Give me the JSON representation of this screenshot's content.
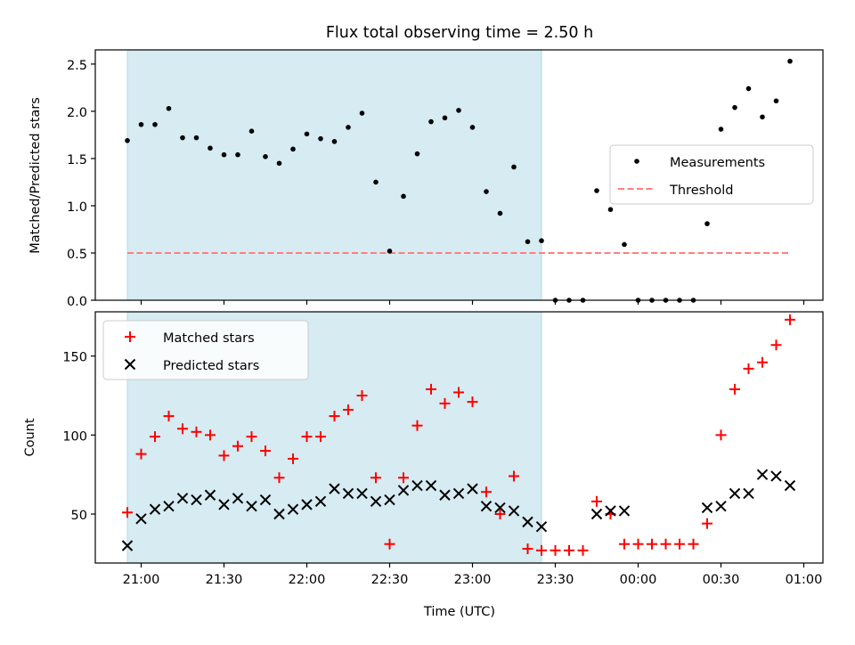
{
  "figure": {
    "title": "Flux total observing time = 2.50 h"
  },
  "chart_data": [
    {
      "type": "scatter",
      "panel": "top",
      "ylabel": "Matched/Predicted stars",
      "ylim": [
        0,
        2.65
      ],
      "yticks": [
        0.0,
        0.5,
        1.0,
        1.5,
        2.0,
        2.5
      ],
      "ytick_labels": [
        "0.0",
        "0.5",
        "1.0",
        "1.5",
        "2.0",
        "2.5"
      ],
      "grid": false,
      "legend": {
        "placement": "center-right",
        "entries": [
          {
            "label": "Measurements",
            "marker": "dot",
            "color": "#000000"
          },
          {
            "label": "Threshold",
            "marker": "dashed-line",
            "color": "#ff7f7f"
          }
        ]
      },
      "shaded_interval": {
        "start": "20:55",
        "end": "23:25",
        "color": "#add8e6"
      },
      "threshold": {
        "value": 0.5,
        "x_start": "20:55",
        "x_end": "00:55",
        "color": "#ff7f7f"
      },
      "series": [
        {
          "name": "Measurements",
          "color": "#000000",
          "x": [
            "20:55",
            "21:00",
            "21:05",
            "21:10",
            "21:15",
            "21:20",
            "21:25",
            "21:30",
            "21:35",
            "21:40",
            "21:45",
            "21:50",
            "21:55",
            "22:00",
            "22:05",
            "22:10",
            "22:15",
            "22:20",
            "22:25",
            "22:30",
            "22:35",
            "22:40",
            "22:45",
            "22:50",
            "22:55",
            "23:00",
            "23:05",
            "23:10",
            "23:15",
            "23:20",
            "23:25",
            "23:30",
            "23:35",
            "23:40",
            "23:45",
            "23:50",
            "23:55",
            "00:00",
            "00:05",
            "00:10",
            "00:15",
            "00:20",
            "00:25",
            "00:30",
            "00:35",
            "00:40",
            "00:45",
            "00:50",
            "00:55"
          ],
          "y": [
            1.69,
            1.86,
            1.86,
            2.03,
            1.72,
            1.72,
            1.61,
            1.54,
            1.54,
            1.79,
            1.52,
            1.45,
            1.6,
            1.76,
            1.71,
            1.68,
            1.83,
            1.98,
            1.25,
            0.52,
            1.1,
            1.55,
            1.89,
            1.93,
            2.01,
            1.83,
            1.15,
            0.92,
            1.41,
            0.62,
            0.63,
            0.0,
            0.0,
            0.0,
            1.16,
            0.96,
            0.59,
            0.0,
            0.0,
            0.0,
            0.0,
            0.0,
            0.81,
            1.81,
            2.04,
            2.24,
            1.94,
            2.11,
            2.53
          ]
        }
      ]
    },
    {
      "type": "scatter",
      "panel": "bottom",
      "xlabel": "Time (UTC)",
      "ylabel": "Count",
      "ylim": [
        19,
        178
      ],
      "yticks": [
        50,
        100,
        150
      ],
      "ytick_labels": [
        "50",
        "100",
        "150"
      ],
      "xticks": [
        "21:00",
        "21:30",
        "22:00",
        "22:30",
        "23:00",
        "23:30",
        "00:00",
        "00:30",
        "01:00"
      ],
      "grid": false,
      "legend": {
        "placement": "upper-left",
        "entries": [
          {
            "label": "Matched stars",
            "marker": "plus",
            "color": "#ff0000"
          },
          {
            "label": "Predicted stars",
            "marker": "x",
            "color": "#000000"
          }
        ]
      },
      "shaded_interval": {
        "start": "20:55",
        "end": "23:25",
        "color": "#add8e6"
      },
      "series": [
        {
          "name": "Matched stars",
          "marker": "plus",
          "color": "#ff0000",
          "x": [
            "20:55",
            "21:00",
            "21:05",
            "21:10",
            "21:15",
            "21:20",
            "21:25",
            "21:30",
            "21:35",
            "21:40",
            "21:45",
            "21:50",
            "21:55",
            "22:00",
            "22:05",
            "22:10",
            "22:15",
            "22:20",
            "22:25",
            "22:30",
            "22:35",
            "22:40",
            "22:45",
            "22:50",
            "22:55",
            "23:00",
            "23:05",
            "23:10",
            "23:15",
            "23:20",
            "23:25",
            "23:30",
            "23:35",
            "23:40",
            "23:45",
            "23:50",
            "23:55",
            "00:00",
            "00:05",
            "00:10",
            "00:15",
            "00:20",
            "00:25",
            "00:30",
            "00:35",
            "00:40",
            "00:45",
            "00:50",
            "00:55"
          ],
          "y": [
            51,
            88,
            99,
            112,
            104,
            102,
            100,
            87,
            93,
            99,
            90,
            73,
            85,
            99,
            99,
            112,
            116,
            125,
            73,
            31,
            73,
            106,
            129,
            120,
            127,
            121,
            64,
            50,
            74,
            28,
            27,
            27,
            27,
            27,
            58,
            50,
            31,
            31,
            31,
            31,
            31,
            31,
            44,
            100,
            129,
            142,
            146,
            157,
            173
          ]
        },
        {
          "name": "Predicted stars",
          "marker": "x",
          "color": "#000000",
          "x": [
            "20:55",
            "21:00",
            "21:05",
            "21:10",
            "21:15",
            "21:20",
            "21:25",
            "21:30",
            "21:35",
            "21:40",
            "21:45",
            "21:50",
            "21:55",
            "22:00",
            "22:05",
            "22:10",
            "22:15",
            "22:20",
            "22:25",
            "22:30",
            "22:35",
            "22:40",
            "22:45",
            "22:50",
            "22:55",
            "23:00",
            "23:05",
            "23:10",
            "23:15",
            "23:20",
            "23:25",
            "23:45",
            "23:50",
            "23:55",
            "00:25",
            "00:30",
            "00:35",
            "00:40",
            "00:45",
            "00:50",
            "00:55"
          ],
          "y": [
            30,
            47,
            53,
            55,
            60,
            59,
            62,
            56,
            60,
            55,
            59,
            50,
            53,
            56,
            58,
            66,
            63,
            63,
            58,
            59,
            65,
            68,
            68,
            62,
            63,
            66,
            55,
            54,
            52,
            45,
            42,
            50,
            52,
            52,
            54,
            55,
            63,
            63,
            75,
            74,
            68
          ]
        }
      ]
    }
  ]
}
